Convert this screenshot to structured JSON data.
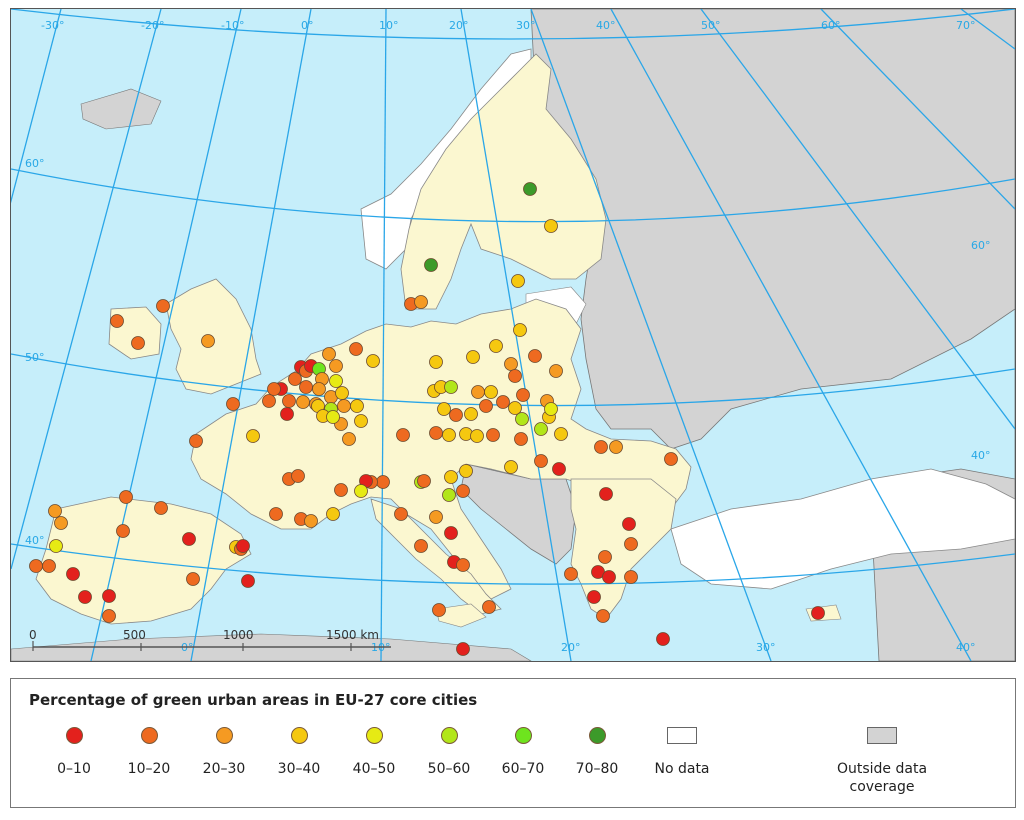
{
  "legend": {
    "title": "Percentage of green urban areas in EU-27 core cities",
    "classes": [
      {
        "label": "0–10",
        "color": "#e3211d"
      },
      {
        "label": "10–20",
        "color": "#ee6a20"
      },
      {
        "label": "20–30",
        "color": "#f59a22"
      },
      {
        "label": "30–40",
        "color": "#f5c810"
      },
      {
        "label": "40–50",
        "color": "#e6ea14"
      },
      {
        "label": "50–60",
        "color": "#b2e61a"
      },
      {
        "label": "60–70",
        "color": "#6ee41e"
      },
      {
        "label": "70–80",
        "color": "#3c9a2a"
      }
    ],
    "no_data": {
      "label": "No data",
      "color": "#ffffff"
    },
    "outside": {
      "label": "Outside data coverage",
      "color": "#d3d3d3"
    }
  },
  "map": {
    "colors": {
      "sea": "#c6eefa",
      "eu_land": "#fbf7d0",
      "outside_land": "#d3d3d3",
      "no_data_land": "#ffffff",
      "graticule": "#2aa6e8"
    },
    "graticule_labels": {
      "top_longitudes": [
        "-30°",
        "-20°",
        "-10°",
        "0°",
        "10°",
        "20°",
        "30°",
        "40°",
        "50°",
        "60°",
        "70°"
      ],
      "bottom_longitudes": [
        "0°",
        "10°",
        "20°",
        "30°",
        "40°"
      ],
      "latitudes": [
        "60°",
        "50°",
        "40°"
      ]
    },
    "scale_bar": {
      "labels": [
        "0",
        "500",
        "1000",
        "1500 km"
      ]
    }
  }
}
